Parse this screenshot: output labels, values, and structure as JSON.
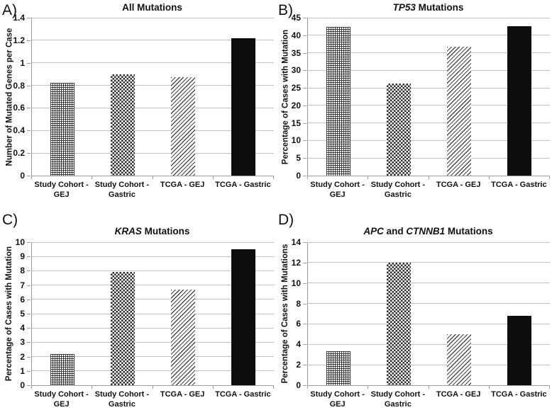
{
  "figure": {
    "bar_patterns": [
      "fine-grid",
      "checkerboard",
      "diagonal-stripes",
      "solid-black"
    ],
    "colors": {
      "background": "#ffffff",
      "pattern_ink": "#2e2e2e",
      "solid_bar": "#0d0d0d",
      "gridline": "#c2c2c2",
      "axis": "#9b9b9b",
      "text": "#111111"
    }
  },
  "chart_data": [
    {
      "type": "bar",
      "panel_label": "A)",
      "title_parts": [
        {
          "text": "All Mutations",
          "italic": false
        }
      ],
      "title": "All Mutations",
      "ylabel": "Number of Mutated Genes per Case",
      "ylim": [
        0,
        1.4
      ],
      "yticks": [
        "0",
        "0.2",
        "0.4",
        "0.6",
        "0.8",
        "1",
        "1.2",
        "1.4"
      ],
      "grid": true,
      "legend": "none",
      "categories": [
        "Study Cohort - GEJ",
        "Study Cohort - Gastric",
        "TCGA - GEJ",
        "TCGA - Gastric"
      ],
      "values": [
        0.82,
        0.9,
        0.87,
        1.22
      ]
    },
    {
      "type": "bar",
      "panel_label": "B)",
      "title_parts": [
        {
          "text": "TP53",
          "italic": true
        },
        {
          "text": " Mutations",
          "italic": false
        }
      ],
      "title": "TP53 Mutations",
      "ylabel": "Percentage of Cases with Mutation",
      "ylim": [
        0,
        45
      ],
      "yticks": [
        "0",
        "5",
        "10",
        "15",
        "20",
        "25",
        "30",
        "35",
        "40",
        "45"
      ],
      "grid": true,
      "legend": "none",
      "categories": [
        "Study Cohort - GEJ",
        "Study Cohort - Gastric",
        "TCGA - GEJ",
        "TCGA - Gastric"
      ],
      "values": [
        42.4,
        26.3,
        36.7,
        42.6
      ]
    },
    {
      "type": "bar",
      "panel_label": "C)",
      "title_parts": [
        {
          "text": "KRAS",
          "italic": true
        },
        {
          "text": " Mutations",
          "italic": false
        }
      ],
      "title": "KRAS Mutations",
      "ylabel": "Percentage of Cases with Mutation",
      "ylim": [
        0,
        10
      ],
      "yticks": [
        "0",
        "1",
        "2",
        "3",
        "4",
        "5",
        "6",
        "7",
        "8",
        "9",
        "10"
      ],
      "grid": true,
      "legend": "none",
      "categories": [
        "Study Cohort - GEJ",
        "Study Cohort - Gastric",
        "TCGA - GEJ",
        "TCGA - Gastric"
      ],
      "values": [
        2.2,
        7.9,
        6.7,
        9.5
      ]
    },
    {
      "type": "bar",
      "panel_label": "D)",
      "title_parts": [
        {
          "text": "APC",
          "italic": true
        },
        {
          "text": " and ",
          "italic": false
        },
        {
          "text": "CTNNB1",
          "italic": true
        },
        {
          "text": " Mutations",
          "italic": false
        }
      ],
      "title": "APC and CTNNB1 Mutations",
      "ylabel": "Percentage of Cases with Mutations",
      "ylim": [
        0,
        14
      ],
      "yticks": [
        "0",
        "2",
        "4",
        "6",
        "8",
        "10",
        "12",
        "14"
      ],
      "grid": true,
      "legend": "none",
      "categories": [
        "Study Cohort - GEJ",
        "Study Cohort - Gastric",
        "TCGA - GEJ",
        "TCGA - Gastric"
      ],
      "values": [
        3.3,
        12.0,
        5.0,
        6.8
      ]
    }
  ]
}
